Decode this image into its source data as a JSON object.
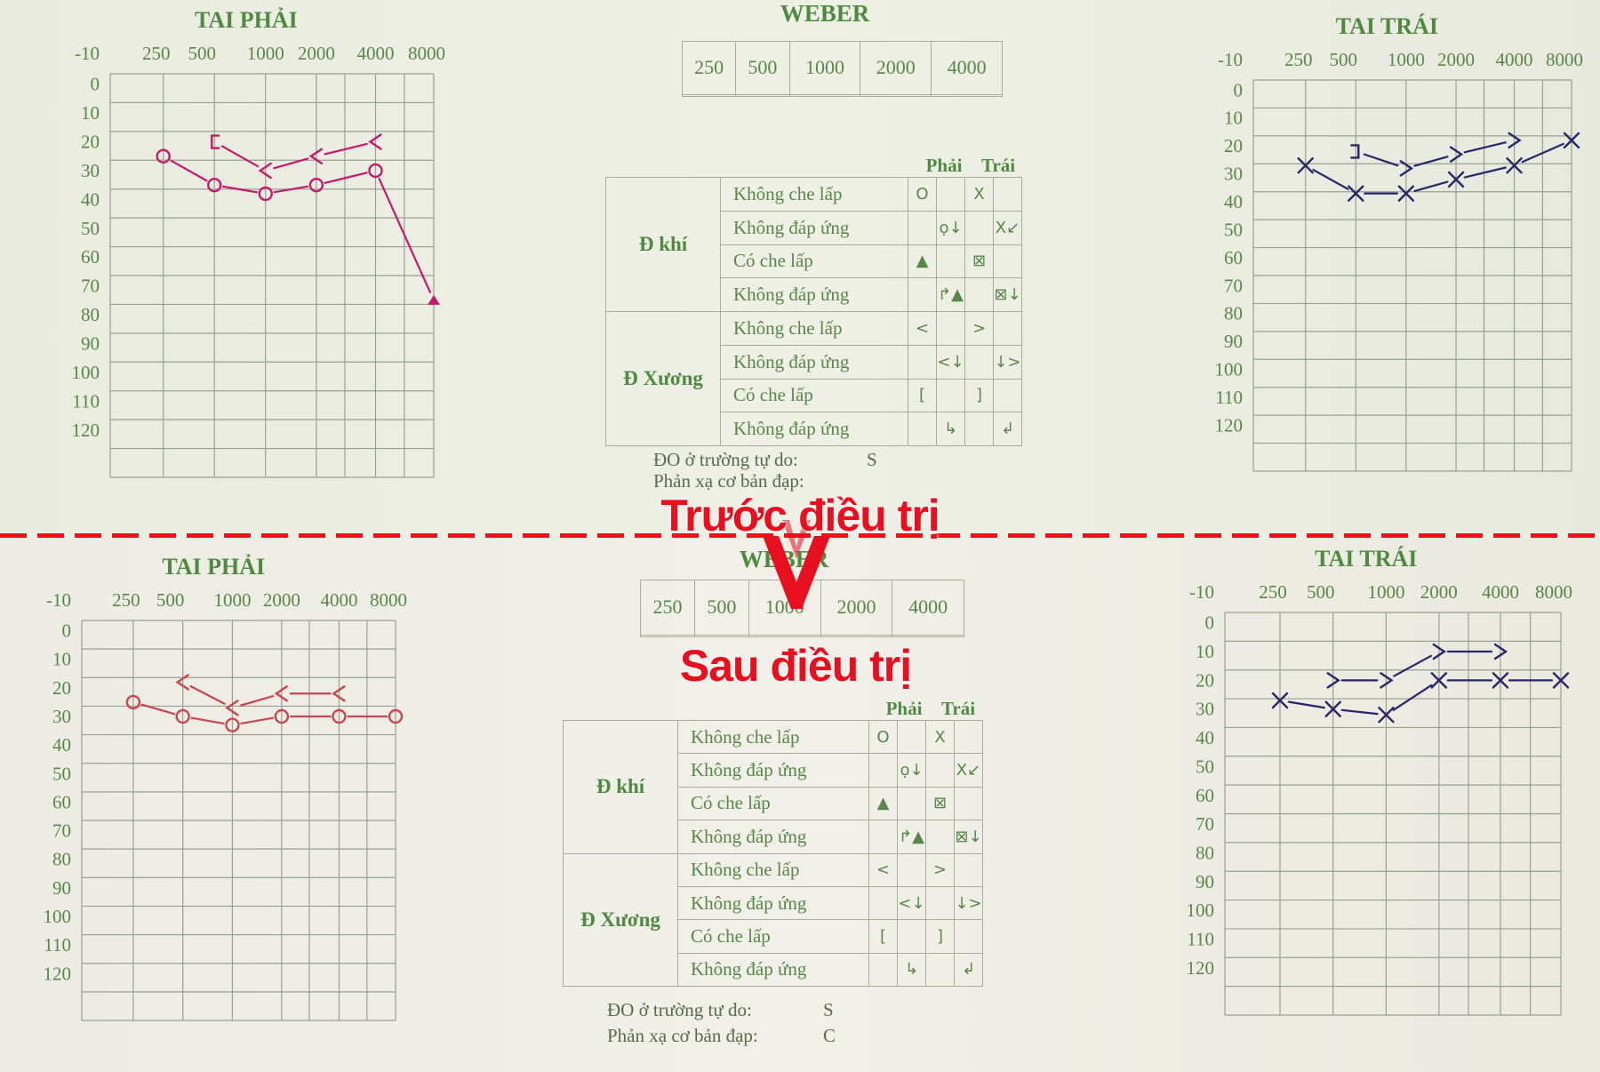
{
  "labels": {
    "before": "Trước điều trị",
    "after": "Sau điều trị"
  },
  "colors": {
    "right_ear_before": "#c41a6a",
    "right_ear_after": "#c8454f",
    "left_ear": "#2b2466",
    "form_green": "#5a8648",
    "overlay_red": "#e8101e"
  },
  "chart_data": [
    {
      "type": "line",
      "panel": "before",
      "title": "TAI PHẢI",
      "x_ticks": [
        "250",
        "500",
        "1000",
        "2000",
        "4000",
        "8000"
      ],
      "y_ticks": [
        -10,
        0,
        10,
        20,
        30,
        40,
        50,
        60,
        70,
        80,
        90,
        100,
        110,
        120
      ],
      "ylim": [
        -10,
        130
      ],
      "y_inverted": true,
      "grid": true,
      "series": [
        {
          "symbol": "circle",
          "color": "#c41a6a",
          "points": [
            [
              250,
              25
            ],
            [
              500,
              35
            ],
            [
              1000,
              38
            ],
            [
              2000,
              35
            ],
            [
              4000,
              30
            ],
            [
              8000,
              75
            ]
          ],
          "last_symbol": "triangle"
        },
        {
          "symbol": "angle-left",
          "color": "#c41a6a",
          "points": [
            [
              500,
              20
            ],
            [
              1000,
              30
            ],
            [
              2000,
              25
            ],
            [
              4000,
              20
            ]
          ],
          "first_symbol": "bracket-left"
        }
      ]
    },
    {
      "type": "line",
      "panel": "before",
      "title": "TAI TRÁI",
      "x_ticks": [
        "250",
        "500",
        "1000",
        "2000",
        "4000",
        "8000"
      ],
      "y_ticks": [
        -10,
        0,
        10,
        20,
        30,
        40,
        50,
        60,
        70,
        80,
        90,
        100,
        110,
        120
      ],
      "ylim": [
        -10,
        130
      ],
      "y_inverted": true,
      "grid": true,
      "series": [
        {
          "symbol": "cross",
          "color": "#2b2466",
          "points": [
            [
              250,
              27
            ],
            [
              500,
              37
            ],
            [
              1000,
              37
            ],
            [
              2000,
              32
            ],
            [
              4000,
              27
            ],
            [
              8000,
              18
            ]
          ]
        },
        {
          "symbol": "angle-right",
          "color": "#2b2466",
          "points": [
            [
              500,
              22
            ],
            [
              1000,
              28
            ],
            [
              2000,
              23
            ],
            [
              4000,
              18
            ]
          ],
          "first_symbol": "bracket-right"
        }
      ]
    },
    {
      "type": "line",
      "panel": "after",
      "title": "TAI PHẢI",
      "x_ticks": [
        "250",
        "500",
        "1000",
        "2000",
        "4000",
        "8000"
      ],
      "y_ticks": [
        -10,
        0,
        10,
        20,
        30,
        40,
        50,
        60,
        70,
        80,
        90,
        100,
        110,
        120
      ],
      "ylim": [
        -10,
        130
      ],
      "y_inverted": true,
      "grid": true,
      "series": [
        {
          "symbol": "circle",
          "color": "#c8454f",
          "points": [
            [
              250,
              25
            ],
            [
              500,
              30
            ],
            [
              1000,
              33
            ],
            [
              2000,
              30
            ],
            [
              4000,
              30
            ],
            [
              8000,
              30
            ]
          ]
        },
        {
          "symbol": "angle-left",
          "color": "#c8454f",
          "points": [
            [
              500,
              18
            ],
            [
              1000,
              27
            ],
            [
              2000,
              22
            ],
            [
              4000,
              22
            ]
          ]
        }
      ]
    },
    {
      "type": "line",
      "panel": "after",
      "title": "TAI TRÁI",
      "x_ticks": [
        "250",
        "500",
        "1000",
        "2000",
        "4000",
        "8000"
      ],
      "y_ticks": [
        -10,
        0,
        10,
        20,
        30,
        40,
        50,
        60,
        70,
        80,
        90,
        100,
        110,
        120
      ],
      "ylim": [
        -10,
        130
      ],
      "y_inverted": true,
      "grid": true,
      "series": [
        {
          "symbol": "cross",
          "color": "#2b2466",
          "points": [
            [
              250,
              27
            ],
            [
              500,
              30
            ],
            [
              1000,
              32
            ],
            [
              2000,
              20
            ],
            [
              4000,
              20
            ],
            [
              8000,
              20
            ]
          ]
        },
        {
          "symbol": "angle-right",
          "color": "#2b2466",
          "points": [
            [
              500,
              20
            ],
            [
              1000,
              20
            ],
            [
              2000,
              10
            ],
            [
              4000,
              10
            ]
          ]
        }
      ]
    }
  ],
  "weber": {
    "title": "WEBER",
    "headers": [
      "250",
      "500",
      "1000",
      "2000",
      "4000"
    ],
    "values": [
      "",
      "",
      "",
      "",
      ""
    ]
  },
  "legend": {
    "header": [
      "Phải",
      "Trái"
    ],
    "groups": [
      "Đ khí",
      "Đ Xương"
    ],
    "rows": [
      {
        "label": "Không che lấp",
        "cells": [
          "O",
          "",
          "X",
          ""
        ]
      },
      {
        "label": "Không đáp ứng",
        "cells": [
          "",
          "ọ↓",
          "",
          "X↙"
        ]
      },
      {
        "label": "Có che lấp",
        "cells": [
          "▲",
          "",
          "⊠",
          ""
        ]
      },
      {
        "label": "Không đáp ứng",
        "cells": [
          "",
          "↱▲",
          "",
          "⊠↓"
        ]
      },
      {
        "label": "Không che lấp",
        "cells": [
          "<",
          "",
          ">",
          ""
        ]
      },
      {
        "label": "Không đáp ứng",
        "cells": [
          "",
          "<↓",
          "",
          "↓>"
        ]
      },
      {
        "label": "Có che lấp",
        "cells": [
          "[",
          "",
          "]",
          ""
        ]
      },
      {
        "label": "Không đáp ứng",
        "cells": [
          "",
          "↳",
          "",
          "↲"
        ]
      }
    ]
  },
  "free_field": {
    "before": {
      "label": "ĐO ở trường tự do:",
      "value": "S",
      "reflex_label": "Phản xạ cơ bản đạp:"
    },
    "after": {
      "label": "ĐO ở trường tự do:",
      "value": "S",
      "reflex_label": "Phản xạ cơ bản đạp:",
      "reflex_value": "C"
    }
  }
}
